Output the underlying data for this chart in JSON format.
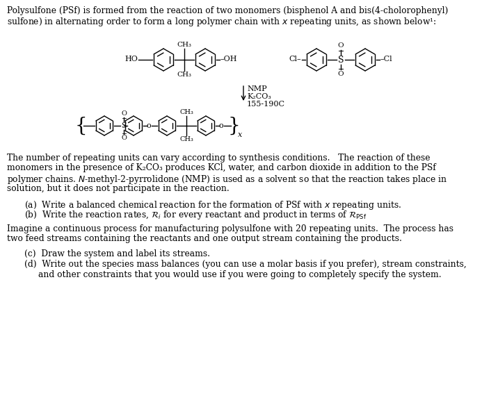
{
  "bg_color": "#ffffff",
  "text_color": "#000000",
  "fig_width": 6.93,
  "fig_height": 5.96,
  "dpi": 100,
  "title_line1": "Polysulfone (PSf) is formed from the reaction of two monomers (bisphenol A and bis(4-cholorophenyl)",
  "title_line2": "sulfone) in alternating order to form a long polymer chain with $x$ repeating units, as shown below¹:",
  "body_lines": [
    "The number of repeating units can vary according to synthesis conditions.   The reaction of these",
    "monomers in the presence of K₂CO₃ produces KCl, water, and carbon dioxide in addition to the PSf",
    "polymer chains. $N$-methyl-2-pyrrolidone (NMP) is used as a solvent so that the reaction takes place in",
    "solution, but it does not participate in the reaction."
  ],
  "item_a": "(a)  Write a balanced chemical reaction for the formation of PSf with $x$ repeating units.",
  "item_b_pre": "(b)  Write the reaction rates, ",
  "item_b_post": " for every reactant and product in terms of ",
  "para2_lines": [
    "Imagine a continuous process for manufacturing polysulfone with 20 repeating units.  The process has",
    "two feed streams containing the reactants and one output stream containing the products."
  ],
  "item_c": "(c)  Draw the system and label its streams.",
  "item_d1": "(d)  Write out the species mass balances (you can use a molar basis if you prefer), stream constraints,",
  "item_d2": "      and other constraints that you would use if you were going to completely specify the system.",
  "arrow_label1": "NMP",
  "arrow_label2": "K₂CO₃",
  "arrow_label3": "155-190C"
}
